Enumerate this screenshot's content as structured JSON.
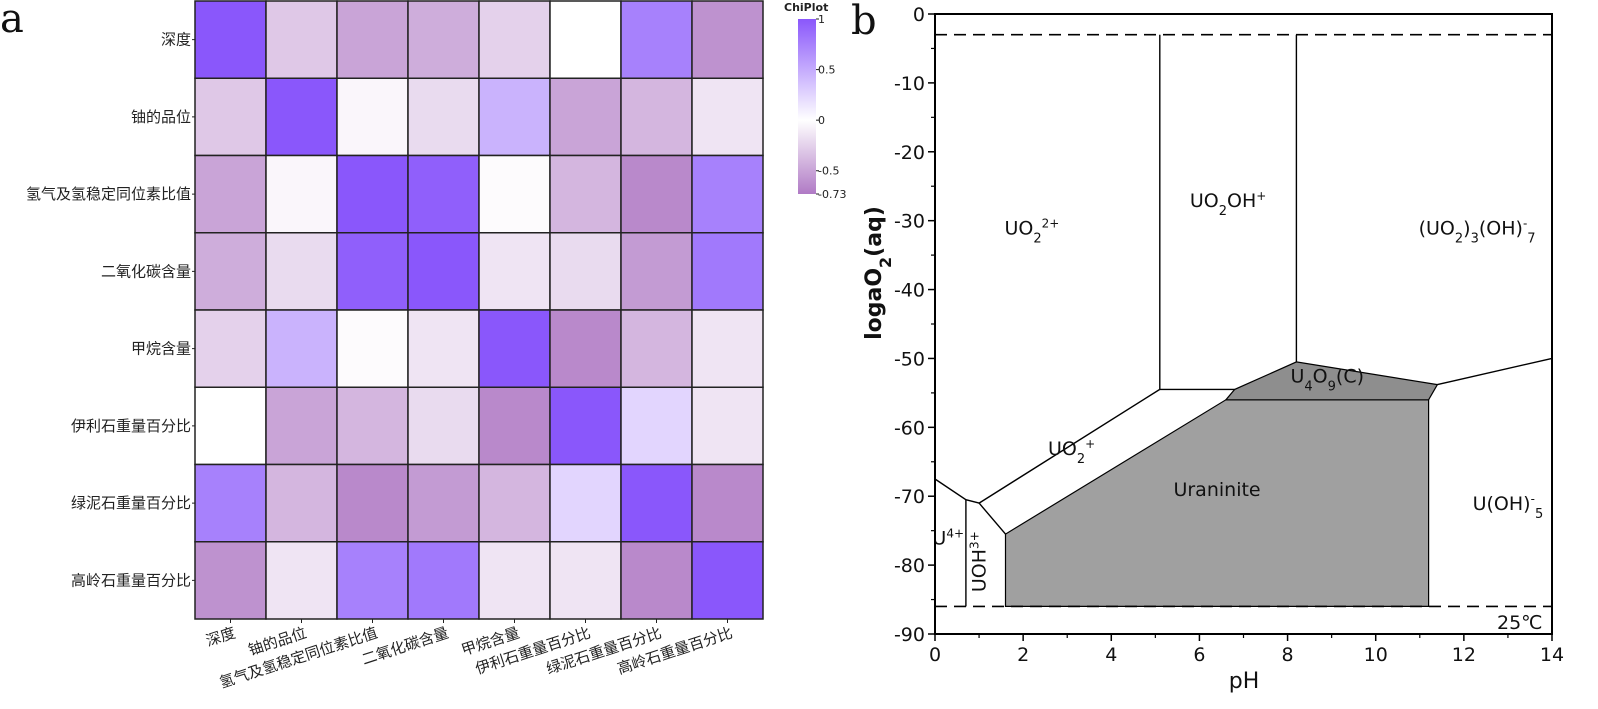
{
  "panel_labels": {
    "a": "a",
    "b": "b"
  },
  "colors": {
    "positive_end": "#8a57fb",
    "neutral": "#ffffff",
    "negative_end": "#b07ac5",
    "grid_line": "#222222",
    "solid_phase": "#a0a0a0",
    "oxide_phase": "#8e8e8e",
    "boundary": "#000000"
  },
  "chart_data": [
    {
      "type": "heatmap",
      "title": "",
      "row_labels": [
        "深度",
        "铀的品位",
        "氢气及氢稳定同位素比值",
        "二氧化碳含量",
        "甲烷含量",
        "伊利石重量百分比",
        "绿泥石重量百分比",
        "高岭石重量百分比"
      ],
      "col_labels": [
        "深度",
        "铀的品位",
        "氢气及氢稳定同位素比值",
        "二氧化碳含量",
        "甲烷含量",
        "伊利石重量百分比",
        "绿泥石重量百分比",
        "高岭石重量百分比"
      ],
      "values": [
        [
          1.0,
          -0.3,
          -0.5,
          -0.45,
          -0.25,
          0.0,
          0.75,
          -0.6
        ],
        [
          -0.3,
          1.0,
          -0.05,
          -0.2,
          0.45,
          -0.5,
          -0.4,
          -0.15
        ],
        [
          -0.5,
          -0.05,
          1.0,
          0.95,
          -0.02,
          -0.4,
          -0.65,
          0.75
        ],
        [
          -0.45,
          -0.2,
          0.95,
          1.0,
          -0.15,
          -0.2,
          -0.55,
          0.8
        ],
        [
          -0.25,
          0.45,
          -0.02,
          -0.15,
          1.0,
          -0.65,
          -0.4,
          -0.15
        ],
        [
          0.0,
          -0.5,
          -0.4,
          -0.2,
          -0.65,
          1.0,
          0.25,
          -0.15
        ],
        [
          0.75,
          -0.4,
          -0.65,
          -0.55,
          -0.4,
          0.25,
          1.0,
          -0.65
        ],
        [
          -0.6,
          -0.15,
          0.75,
          0.8,
          -0.15,
          -0.15,
          -0.65,
          1.0
        ]
      ],
      "colorbar": {
        "title": "ChiPlot",
        "min": -0.73,
        "max": 1,
        "ticks": [
          "1",
          "0.5",
          "0",
          "-0.5",
          "-0.73"
        ],
        "tick_values": [
          1,
          0.5,
          0,
          -0.5,
          -0.73
        ]
      }
    },
    {
      "type": "phase-diagram",
      "title": "",
      "xlabel": "pH",
      "ylabel_main": "logaO",
      "ylabel_sub": "2",
      "ylabel_tail": "(aq)",
      "xlim": [
        0,
        14
      ],
      "ylim": [
        -90,
        0
      ],
      "xticks": [
        0,
        2,
        4,
        6,
        8,
        10,
        12,
        14
      ],
      "yticks": [
        0,
        -10,
        -20,
        -30,
        -40,
        -50,
        -60,
        -70,
        -80,
        -90
      ],
      "water_stability_limits": [
        -3,
        -86
      ],
      "temperature_label": "25℃",
      "solid_regions": [
        {
          "name": "Uraninite",
          "vertices": [
            [
              1.6,
              -75.5
            ],
            [
              6.6,
              -56
            ],
            [
              11.2,
              -56
            ],
            [
              11.2,
              -86
            ],
            [
              1.6,
              -86
            ]
          ]
        },
        {
          "name": "U4O9(C)",
          "vertices": [
            [
              6.6,
              -56
            ],
            [
              6.8,
              -54.5
            ],
            [
              8.2,
              -50.5
            ],
            [
              11.4,
              -53.8
            ],
            [
              11.2,
              -56
            ]
          ]
        }
      ],
      "boundary_lines": [
        {
          "points": [
            [
              5.1,
              -3
            ],
            [
              5.1,
              -54.5
            ]
          ]
        },
        {
          "points": [
            [
              8.2,
              -3
            ],
            [
              8.2,
              -50.5
            ]
          ]
        },
        {
          "points": [
            [
              5.1,
              -54.5
            ],
            [
              6.8,
              -54.5
            ]
          ]
        },
        {
          "points": [
            [
              5.1,
              -54.5
            ],
            [
              1.0,
              -71
            ]
          ]
        },
        {
          "points": [
            [
              1.0,
              -71
            ],
            [
              1.6,
              -75.5
            ]
          ]
        },
        {
          "points": [
            [
              0,
              -67.5
            ],
            [
              0.7,
              -70.5
            ],
            [
              1.0,
              -71
            ]
          ]
        },
        {
          "points": [
            [
              0.7,
              -70.5
            ],
            [
              0.7,
              -86
            ]
          ]
        },
        {
          "points": [
            [
              11.4,
              -53.8
            ],
            [
              14,
              -50
            ]
          ]
        }
      ],
      "region_labels": [
        {
          "main": "UO",
          "sub": "2",
          "sup": "2+",
          "x": 2.2,
          "y": -32
        },
        {
          "main": "UO",
          "sub": "2",
          "tail": "OH",
          "sup": "+",
          "x": 6.65,
          "y": -28
        },
        {
          "main": "(UO",
          "sub": "2",
          "tail": ")",
          "sub2": "3",
          "tail2": "(OH)",
          "sup": "-",
          "sub3": "7",
          "x": 12.3,
          "y": -32
        },
        {
          "main": "UO",
          "sub": "2",
          "sup": "+",
          "x": 3.1,
          "y": -64
        },
        {
          "main": "Uraninite",
          "x": 6.4,
          "y": -70
        },
        {
          "main": "U(OH)",
          "sup": "-",
          "sub": "5",
          "x": 13.0,
          "y": -72
        },
        {
          "main": "U",
          "sup": "4+",
          "x": 0.3,
          "y": -77
        },
        {
          "main": "U",
          "sub": "4",
          "tail": "O",
          "sub2": "9",
          "tail2": "(C)",
          "x": 8.9,
          "y": -53.5
        },
        {
          "main": "UOH",
          "sup": "3+",
          "x": 1.15,
          "y": -79.5,
          "rotate": true
        }
      ]
    }
  ]
}
